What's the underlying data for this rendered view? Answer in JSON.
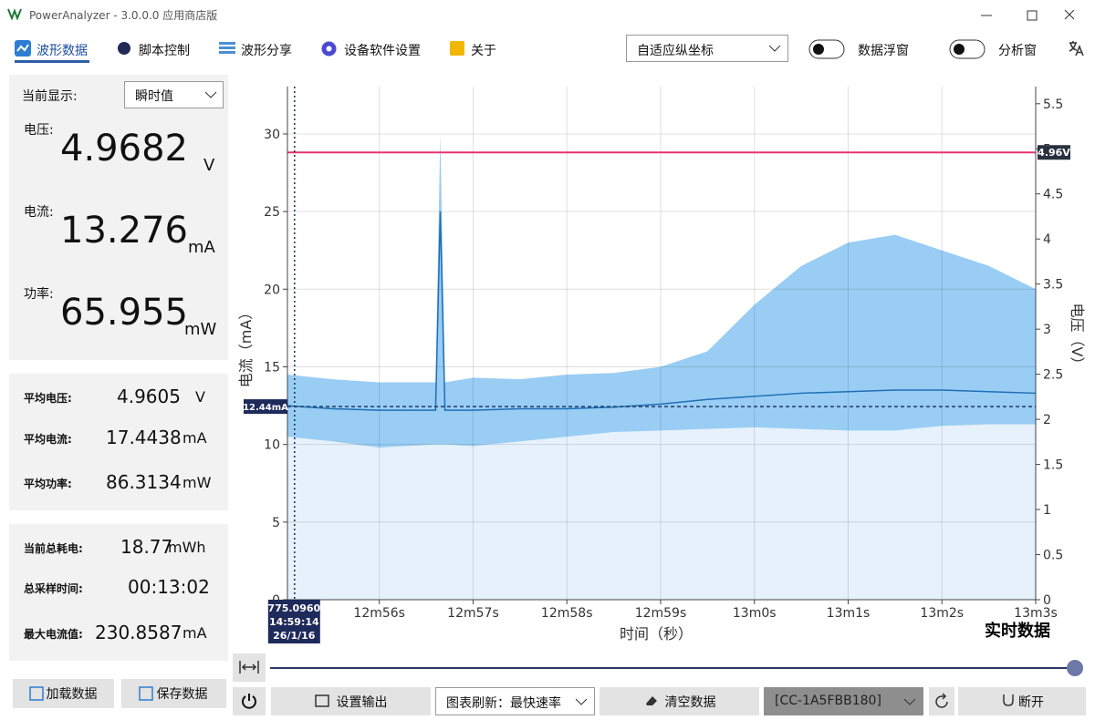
{
  "title_bar": {
    "app_title": "PowerAnalyzer - 3.0.0.0 应用商店版"
  },
  "toolbar": {
    "tabs": [
      "波形数据",
      "脚本控制",
      "波形分享",
      "设备软件设置",
      "关于"
    ],
    "axis_mode": "自适应纵坐标",
    "toggles": [
      "数据浮窗",
      "分析窗"
    ]
  },
  "readings": {
    "display_label": "当前显示:",
    "display_mode": "瞬时值",
    "items": [
      {
        "label": "电压:",
        "value": 4.9682,
        "unit": "V"
      },
      {
        "label": "电流:",
        "value": 13.276,
        "unit": "mA"
      },
      {
        "label": "功率:",
        "value": 65.955,
        "unit": "mW"
      }
    ]
  },
  "averages": [
    {
      "label": "平均电压:",
      "value": 4.9605,
      "unit": "V"
    },
    {
      "label": "平均电流:",
      "value": 17.4438,
      "unit": "mA"
    },
    {
      "label": "平均功率:",
      "value": 86.3134,
      "unit": "mW"
    }
  ],
  "totals": [
    {
      "label": "当前总耗电:",
      "value": 18.77,
      "unit": "mWh"
    },
    {
      "label": "总采样时间:",
      "value": "00:13:02"
    },
    {
      "label": "最大电流值:",
      "value": 230.8587,
      "unit": "mA"
    }
  ],
  "file_buttons": [
    "加载数据",
    "保存数据"
  ],
  "bottom_bar": {
    "output": "设置输出",
    "refresh": "图表刷新：最快速率",
    "clear": "清空数据",
    "device": "[CC-1A5FBB180]",
    "disconnect": "断开"
  },
  "chart_data": {
    "type": "line",
    "mode_label": "实时数据",
    "xlabel": "时间（秒）",
    "ylabel": "电流（mA）",
    "y2label": "电压（V）",
    "grid": true,
    "xlim": [
      775.02,
      783
    ],
    "xticks": [
      {
        "value": 776,
        "label": "12m56s"
      },
      {
        "value": 777,
        "label": "12m57s"
      },
      {
        "value": 778,
        "label": "12m58s"
      },
      {
        "value": 779,
        "label": "12m59s"
      },
      {
        "value": 780,
        "label": "13m0s"
      },
      {
        "value": 781,
        "label": "13m1s"
      },
      {
        "value": 782,
        "label": "13m2s"
      },
      {
        "value": 783,
        "label": "13m3s"
      }
    ],
    "ylim": [
      0,
      33.05
    ],
    "yticks": [
      0,
      5,
      10,
      15,
      20,
      25,
      30
    ],
    "y2lim": [
      0,
      5.69
    ],
    "y2ticks": [
      0,
      0.5,
      1,
      1.5,
      2,
      2.5,
      3,
      3.5,
      4,
      4.5,
      5,
      5.5
    ],
    "x": [
      775.02,
      775.5,
      776,
      776.6,
      776.65,
      776.7,
      777,
      777.5,
      778,
      778.5,
      779,
      779.5,
      780,
      780.5,
      781,
      781.5,
      782,
      782.5,
      783
    ],
    "series": [
      {
        "color": "#99cdf4",
        "values": [
          14.5,
          14.2,
          14,
          14,
          30,
          14,
          14.3,
          14.2,
          14.5,
          14.6,
          15,
          16,
          19,
          21.5,
          23,
          23.5,
          22.5,
          21.5,
          20
        ]
      },
      {
        "color": "#e6f1fb",
        "values": [
          10.5,
          10.2,
          9.8,
          10,
          10,
          10,
          9.9,
          10.2,
          10.5,
          10.8,
          10.9,
          11,
          11.1,
          11,
          10.9,
          10.9,
          11.2,
          11.3,
          11.3
        ]
      },
      {
        "color": "#1f6fb5",
        "values": [
          12.5,
          12.3,
          12.2,
          12.2,
          25,
          12.2,
          12.2,
          12.3,
          12.3,
          12.4,
          12.6,
          12.9,
          13.1,
          13.3,
          13.4,
          13.5,
          13.5,
          13.4,
          13.3
        ]
      },
      {
        "color": "#e8336d",
        "axis": "y2",
        "values": [
          4.96,
          4.96,
          4.96,
          4.96,
          4.96,
          4.96,
          4.96,
          4.96,
          4.96,
          4.96,
          4.96,
          4.96,
          4.96,
          4.96,
          4.96,
          4.96,
          4.96,
          4.96,
          4.96
        ]
      }
    ],
    "markers": [
      {
        "value": 4.96,
        "label": "4.96V",
        "axis": "y2"
      },
      {
        "value": 12.44,
        "label": "12.44mA"
      }
    ],
    "cursor": {
      "value": 775.096,
      "label": "775.0960",
      "time": "14:59:14",
      "date": "26/1/16"
    }
  }
}
